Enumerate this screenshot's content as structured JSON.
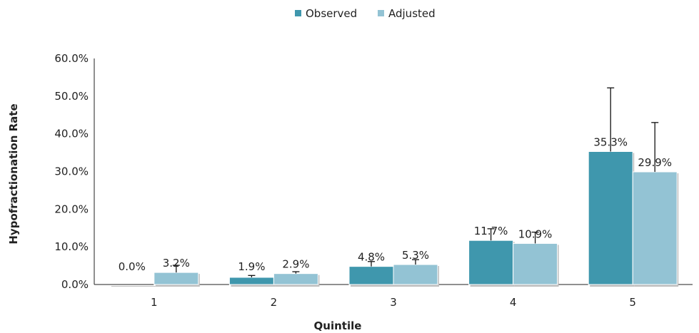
{
  "chart_data": {
    "type": "bar",
    "categories": [
      "1",
      "2",
      "3",
      "4",
      "5"
    ],
    "series": [
      {
        "name": "Observed",
        "color": "#3f97ad",
        "values": [
          0.0,
          1.9,
          4.8,
          11.7,
          35.3
        ],
        "labels": [
          "0.0%",
          "1.9%",
          "4.8%",
          "11.7%",
          "35.3%"
        ],
        "error_upper": [
          0.0,
          2.4,
          6.1,
          14.8,
          52.2
        ]
      },
      {
        "name": "Adjusted",
        "color": "#93c3d4",
        "values": [
          3.2,
          2.9,
          5.3,
          10.9,
          29.9
        ],
        "labels": [
          "3.2%",
          "2.9%",
          "5.3%",
          "10.9%",
          "29.9%"
        ],
        "error_upper": [
          5.1,
          3.4,
          6.6,
          13.9,
          43.0
        ]
      }
    ],
    "xlabel": "Quintile",
    "ylabel": "Hypofractionation Rate",
    "ylim": [
      0,
      60
    ],
    "yticks": [
      "0.0%",
      "10.0%",
      "20.0%",
      "30.0%",
      "40.0%",
      "50.0%",
      "60.0%"
    ],
    "grid": false,
    "legend_position": "top-center"
  }
}
